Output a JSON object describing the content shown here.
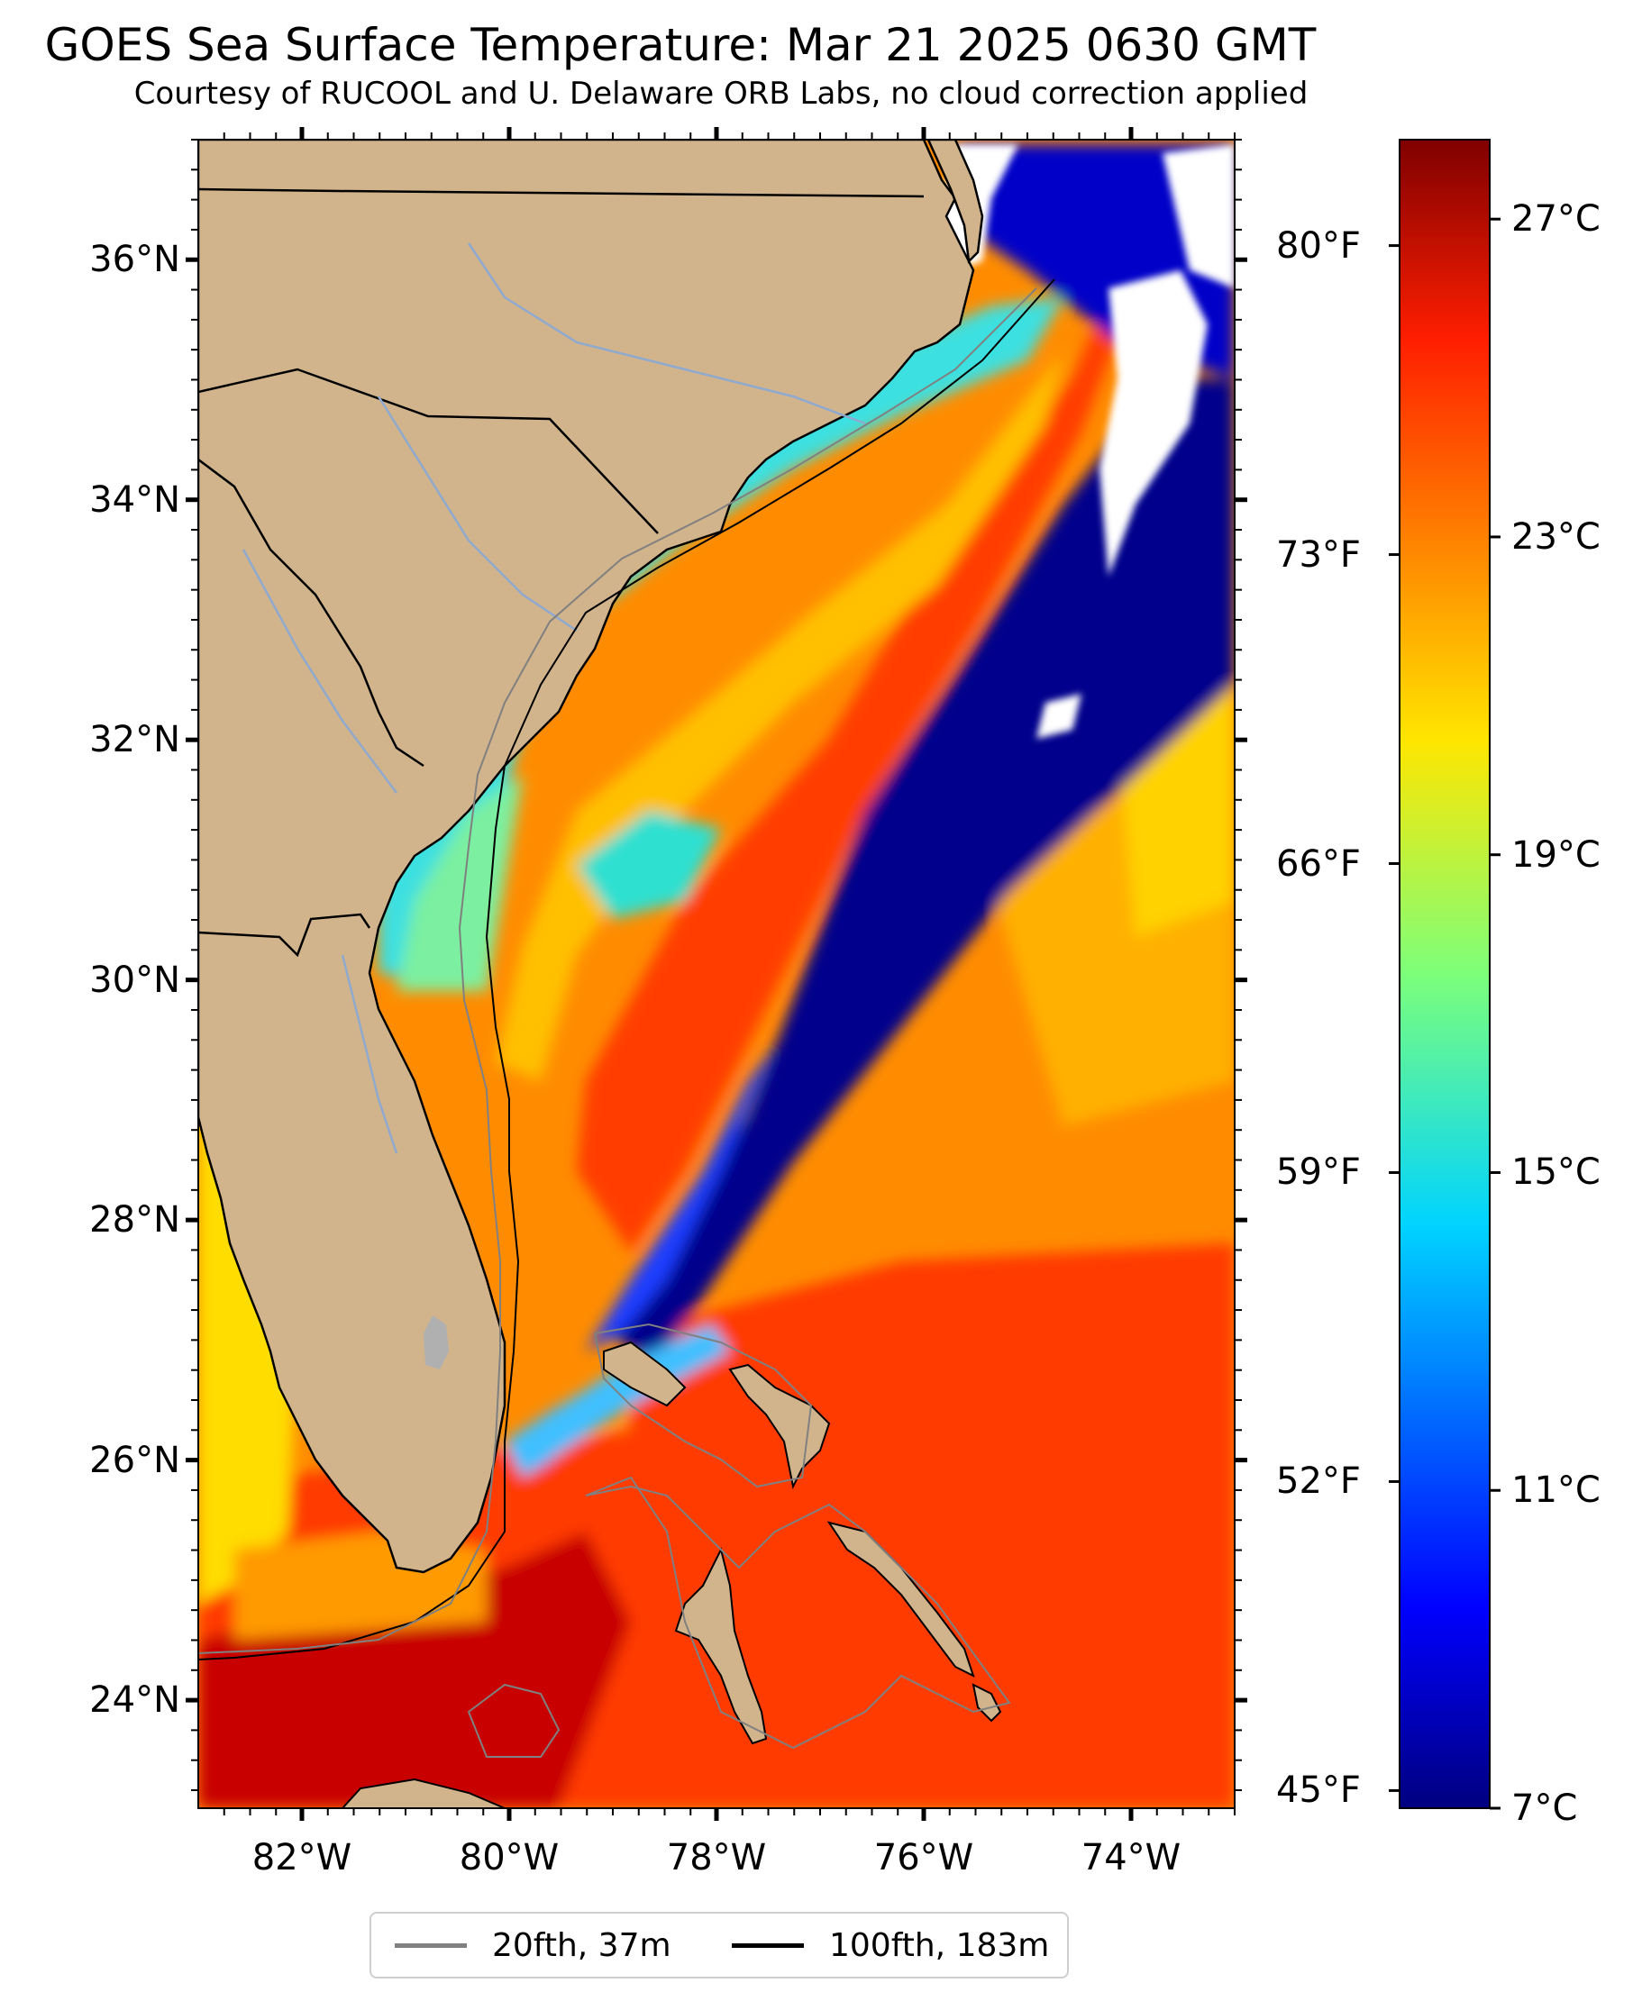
{
  "title": "GOES Sea Surface Temperature: Mar 21 2025 0630 GMT",
  "subtitle": "Courtesy of RUCOOL and U. Delaware ORB Labs, no cloud correction applied",
  "map": {
    "lon_range": [
      -83.0,
      -73.0
    ],
    "lat_range": [
      23.1,
      37.0
    ],
    "lat_ticks": [
      {
        "value": 36,
        "label": "36°N"
      },
      {
        "value": 34,
        "label": "34°N"
      },
      {
        "value": 32,
        "label": "32°N"
      },
      {
        "value": 30,
        "label": "30°N"
      },
      {
        "value": 28,
        "label": "28°N"
      },
      {
        "value": 26,
        "label": "26°N"
      },
      {
        "value": 24,
        "label": "24°N"
      }
    ],
    "lon_ticks": [
      {
        "value": -82,
        "label": "82°W"
      },
      {
        "value": -80,
        "label": "80°W"
      },
      {
        "value": -78,
        "label": "78°W"
      },
      {
        "value": -76,
        "label": "76°W"
      },
      {
        "value": -74,
        "label": "74°W"
      }
    ],
    "colors": {
      "land": "#d2b48c",
      "coastline": "#000000",
      "rivers": "#8fa9cf",
      "cloud": "#ffffff",
      "contour_20fth": "#808080",
      "contour_100fth": "#000000"
    }
  },
  "colorbar": {
    "colormap": "jet",
    "celsius_range": [
      7,
      28
    ],
    "celsius_ticks": [
      {
        "value": 27,
        "label": "27°C"
      },
      {
        "value": 23,
        "label": "23°C"
      },
      {
        "value": 19,
        "label": "19°C"
      },
      {
        "value": 15,
        "label": "15°C"
      },
      {
        "value": 11,
        "label": "11°C"
      },
      {
        "value": 7,
        "label": "7°C"
      }
    ],
    "fahrenheit_ticks": [
      {
        "value": 80,
        "label": "80°F"
      },
      {
        "value": 73,
        "label": "73°F"
      },
      {
        "value": 66,
        "label": "66°F"
      },
      {
        "value": 59,
        "label": "59°F"
      },
      {
        "value": 52,
        "label": "52°F"
      },
      {
        "value": 45,
        "label": "45°F"
      }
    ]
  },
  "legend": {
    "items": [
      {
        "label": "20fth, 37m",
        "color": "#808080"
      },
      {
        "label": "100fth, 183m",
        "color": "#000000"
      }
    ]
  }
}
